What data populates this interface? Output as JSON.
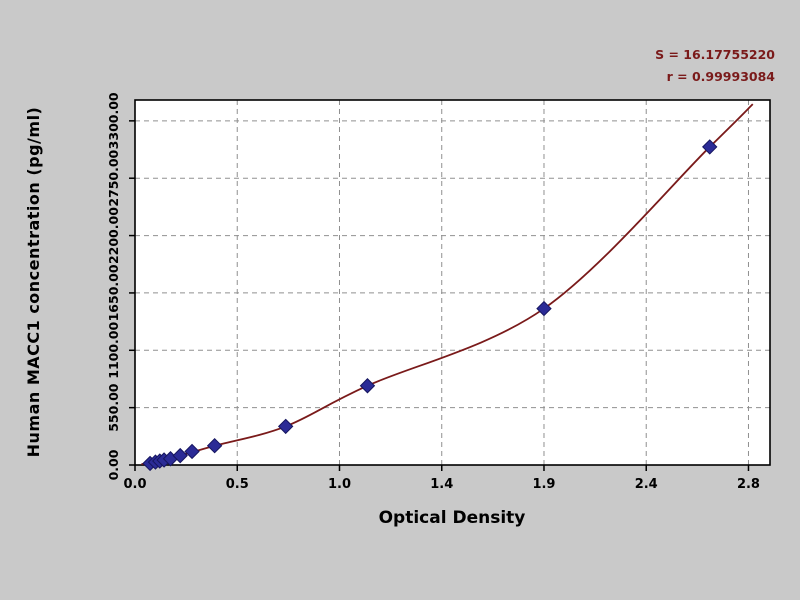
{
  "page": {
    "background": "#c9c9c9",
    "plot_background": "#ffffff"
  },
  "annotations": {
    "s_label": "S = 16.17755220",
    "r_label": "r = 0.99993084",
    "color": "#7a1a1a"
  },
  "chart_data": {
    "type": "scatter",
    "title": "",
    "xlabel": "Optical Density",
    "ylabel": "Human MACC1 concentration (pg/ml)",
    "xlim": [
      0,
      2.95
    ],
    "ylim": [
      0,
      3500
    ],
    "grid": "dashed",
    "grid_color": "#909090",
    "x_ticks": {
      "positions": [
        0,
        0.475,
        0.95,
        1.425,
        1.9,
        2.375,
        2.85
      ],
      "labels": [
        "0.0",
        "0.5",
        "1.0",
        "1.4",
        "1.9",
        "2.4",
        "2.8"
      ]
    },
    "y_ticks": {
      "positions": [
        0,
        550,
        1100,
        1650,
        2200,
        2750,
        3300
      ],
      "labels": [
        "0.00",
        "550.00",
        "1100.00",
        "1650.00",
        "2200.00",
        "2750.00",
        "3300.00"
      ]
    },
    "series": [
      {
        "name": "standard-points",
        "type": "scatter",
        "marker": "diamond",
        "color": "#2b2b96",
        "edge_color": "#15155e",
        "points": [
          [
            0.07,
            15
          ],
          [
            0.095,
            28
          ],
          [
            0.115,
            38
          ],
          [
            0.135,
            48
          ],
          [
            0.165,
            60
          ],
          [
            0.21,
            90
          ],
          [
            0.265,
            130
          ],
          [
            0.37,
            185
          ],
          [
            0.7,
            370
          ],
          [
            1.08,
            760
          ],
          [
            1.9,
            1500
          ],
          [
            2.67,
            3050
          ]
        ]
      },
      {
        "name": "fit-curve",
        "type": "line",
        "color": "#7a1a1a",
        "points": [
          [
            0.03,
            8
          ],
          [
            0.095,
            28
          ],
          [
            0.21,
            90
          ],
          [
            0.37,
            185
          ],
          [
            0.7,
            370
          ],
          [
            1.08,
            760
          ],
          [
            1.9,
            1500
          ],
          [
            2.67,
            3050
          ],
          [
            2.87,
            3460
          ]
        ]
      }
    ],
    "stats": {
      "S": "16.17755220",
      "r": "0.99993084"
    }
  }
}
